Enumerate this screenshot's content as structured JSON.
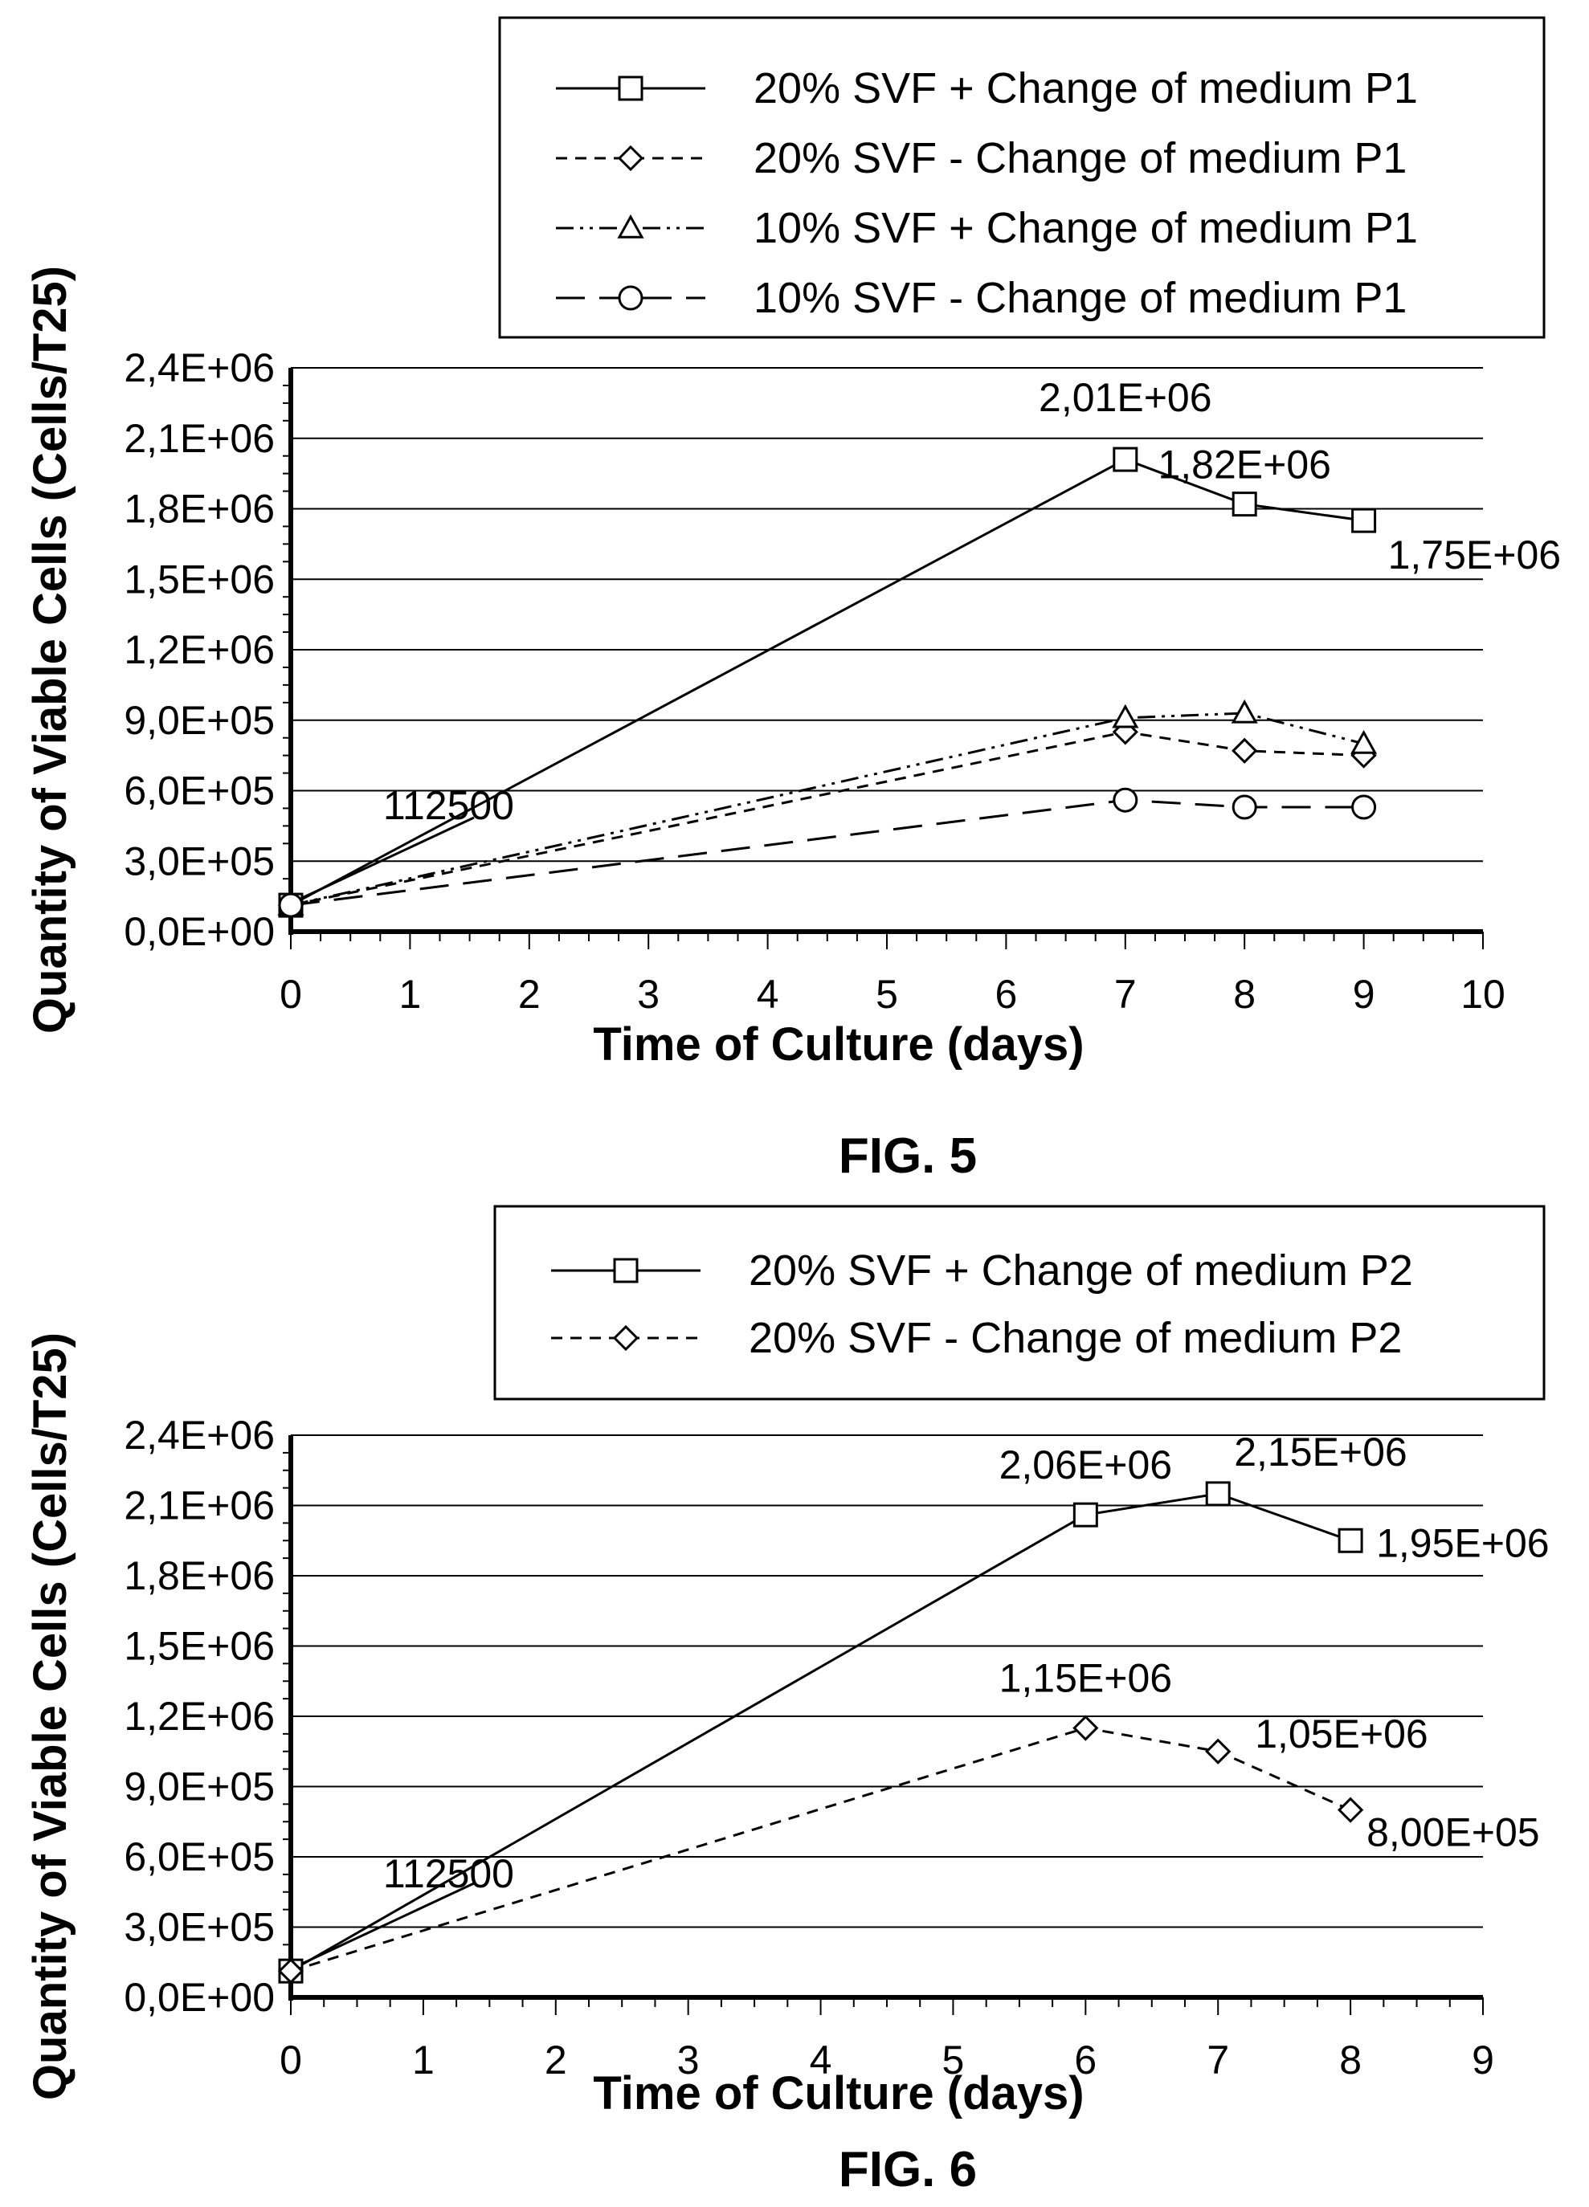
{
  "chart_data": [
    {
      "type": "line",
      "figure_label": "FIG. 5",
      "xlabel": "Time of Culture (days)",
      "ylabel": "Quantity of Viable Cells (Cells/T25)",
      "xlim": [
        0,
        10
      ],
      "ylim": [
        0,
        2400000
      ],
      "x_ticks": [
        "0",
        "1",
        "2",
        "3",
        "4",
        "5",
        "6",
        "7",
        "8",
        "9",
        "10"
      ],
      "y_ticks": [
        "0,0E+00",
        "3,0E+05",
        "6,0E+05",
        "9,0E+05",
        "1,2E+06",
        "1,5E+06",
        "1,8E+06",
        "2,1E+06",
        "2,4E+06"
      ],
      "grid": true,
      "legend_position": "top",
      "series": [
        {
          "name": "20% SVF + Change of medium P1",
          "marker": "square",
          "dash": "solid",
          "x": [
            0,
            7,
            8,
            9
          ],
          "y": [
            112500,
            2010000,
            1820000,
            1750000
          ]
        },
        {
          "name": "20% SVF  - Change of medium P1",
          "marker": "diamond",
          "dash": "dashed",
          "x": [
            0,
            7,
            8,
            9
          ],
          "y": [
            112500,
            850000,
            770000,
            750000
          ]
        },
        {
          "name": "10% SVF + Change of medium P1",
          "marker": "triangle",
          "dash": "dashdot",
          "x": [
            0,
            7,
            8,
            9
          ],
          "y": [
            112500,
            910000,
            930000,
            800000
          ]
        },
        {
          "name": "10% SVF  - Change of medium P1",
          "marker": "circle",
          "dash": "longdash",
          "x": [
            0,
            7,
            8,
            9
          ],
          "y": [
            112500,
            560000,
            530000,
            530000
          ]
        }
      ],
      "annotations": [
        {
          "text": "112500",
          "x": 0,
          "y": 112500,
          "leader": true
        },
        {
          "text": "2,01E+06",
          "x": 7,
          "y": 2010000
        },
        {
          "text": "1,82E+06",
          "x": 8,
          "y": 1820000
        },
        {
          "text": "1,75E+06",
          "x": 9,
          "y": 1750000
        }
      ]
    },
    {
      "type": "line",
      "figure_label": "FIG. 6",
      "xlabel": "Time of Culture (days)",
      "ylabel": "Quantity of Viable Cells (Cells/T25)",
      "xlim": [
        0,
        9
      ],
      "ylim": [
        0,
        2400000
      ],
      "x_ticks": [
        "0",
        "1",
        "2",
        "3",
        "4",
        "5",
        "6",
        "7",
        "8",
        "9"
      ],
      "y_ticks": [
        "0,0E+00",
        "3,0E+05",
        "6,0E+05",
        "9,0E+05",
        "1,2E+06",
        "1,5E+06",
        "1,8E+06",
        "2,1E+06",
        "2,4E+06"
      ],
      "grid": true,
      "legend_position": "top",
      "series": [
        {
          "name": "20% SVF + Change of medium P2",
          "marker": "square",
          "dash": "solid",
          "x": [
            0,
            6,
            7,
            8
          ],
          "y": [
            112500,
            2060000,
            2150000,
            1950000
          ]
        },
        {
          "name": "20% SVF  - Change of medium P2",
          "marker": "diamond",
          "dash": "dashed",
          "x": [
            0,
            6,
            7,
            8
          ],
          "y": [
            112500,
            1150000,
            1050000,
            800000
          ]
        }
      ],
      "annotations": [
        {
          "text": "112500",
          "x": 0,
          "y": 112500,
          "leader": true
        },
        {
          "text": "2,06E+06",
          "x": 6,
          "y": 2060000
        },
        {
          "text": "2,15E+06",
          "x": 7,
          "y": 2150000
        },
        {
          "text": "1,95E+06",
          "x": 8,
          "y": 1950000
        },
        {
          "text": "1,15E+06",
          "x": 6,
          "y": 1150000
        },
        {
          "text": "1,05E+06",
          "x": 7,
          "y": 1050000
        },
        {
          "text": "8,00E+05",
          "x": 8,
          "y": 800000
        }
      ]
    }
  ]
}
